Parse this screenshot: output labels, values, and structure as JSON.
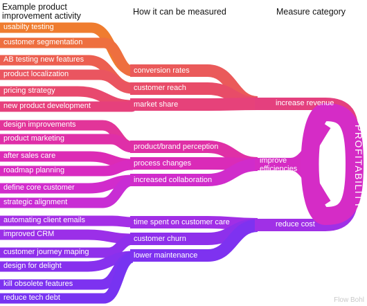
{
  "headers": {
    "activity_line1": "Example product",
    "activity_line2": "improvement activity",
    "measure": "How it can be measured",
    "category": "Measure category"
  },
  "activities": [
    {
      "label": "usabilty testing",
      "color": "#ef7c2f"
    },
    {
      "label": "customer segmentation",
      "color": "#ee6f3f"
    },
    {
      "label": "AB testing new features",
      "color": "#ec5f50"
    },
    {
      "label": "product localization",
      "color": "#ea5560"
    },
    {
      "label": "pricing strategy",
      "color": "#e8496e"
    },
    {
      "label": "new product development",
      "color": "#e6407c"
    },
    {
      "label": "design improvements",
      "color": "#e23599"
    },
    {
      "label": "product marketing",
      "color": "#df2fa8"
    },
    {
      "label": "after sales care",
      "color": "#dc2bb5"
    },
    {
      "label": "roadmap planning",
      "color": "#d82bc0"
    },
    {
      "label": "define core customer",
      "color": "#d12ccc"
    },
    {
      "label": "strategic alignment",
      "color": "#c82dd4"
    },
    {
      "label": "automating client emails",
      "color": "#a42fe6"
    },
    {
      "label": "improved CRM",
      "color": "#9b2fe8"
    },
    {
      "label": "customer journey maping",
      "color": "#9030eb"
    },
    {
      "label": "design for delight",
      "color": "#8731ee"
    },
    {
      "label": "kill obsolete features",
      "color": "#7d32f0"
    },
    {
      "label": "reduce tech debt",
      "color": "#7733f1"
    }
  ],
  "measures": [
    {
      "label": "conversion rates",
      "color": "#ea5a5a"
    },
    {
      "label": "customer reach",
      "color": "#e84c68"
    },
    {
      "label": "market share",
      "color": "#e6427a"
    },
    {
      "label": "product/brand perception",
      "color": "#df30a6"
    },
    {
      "label": "process changes",
      "color": "#da2bb8"
    },
    {
      "label": "increased collaboration",
      "color": "#d02ccb"
    },
    {
      "label": "time spent on customer care",
      "color": "#a12fe6"
    },
    {
      "label": "customer churn",
      "color": "#8e30eb"
    },
    {
      "label": "lower maintenance",
      "color": "#7e32f0"
    }
  ],
  "categories": [
    {
      "label": "increase revenue",
      "color": "#e4407e"
    },
    {
      "label_line1": "improve",
      "label_line2": "efficiencies",
      "color": "#d52cc4"
    },
    {
      "label": "reduce cost",
      "color": "#a030e6"
    }
  ],
  "outcome": {
    "label": "PROFITABILITY",
    "color": "#d52cc6"
  },
  "credit": "Flow Bohl"
}
